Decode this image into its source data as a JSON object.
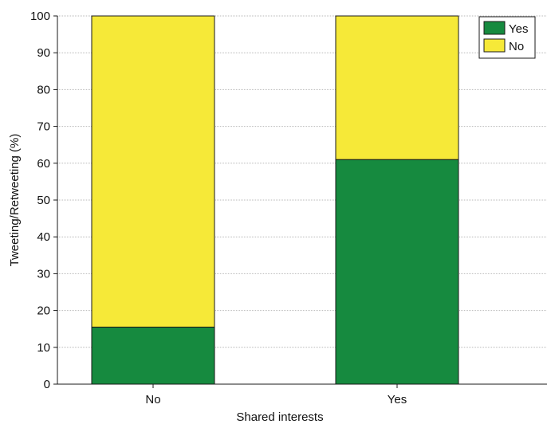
{
  "chart_data": {
    "type": "bar",
    "stacked": true,
    "categories": [
      "No",
      "Yes"
    ],
    "series": [
      {
        "name": "Yes",
        "values": [
          15.5,
          61.0
        ],
        "color": "#168a3f"
      },
      {
        "name": "No",
        "values": [
          84.5,
          39.0
        ],
        "color": "#f6e938"
      }
    ],
    "xlabel": "Shared interests",
    "ylabel": "Tweeting/Retweeting (%)",
    "ylim": [
      0,
      100
    ],
    "yticks": [
      0,
      10,
      20,
      30,
      40,
      50,
      60,
      70,
      80,
      90,
      100
    ],
    "grid": true,
    "legend_position": "top-right"
  }
}
